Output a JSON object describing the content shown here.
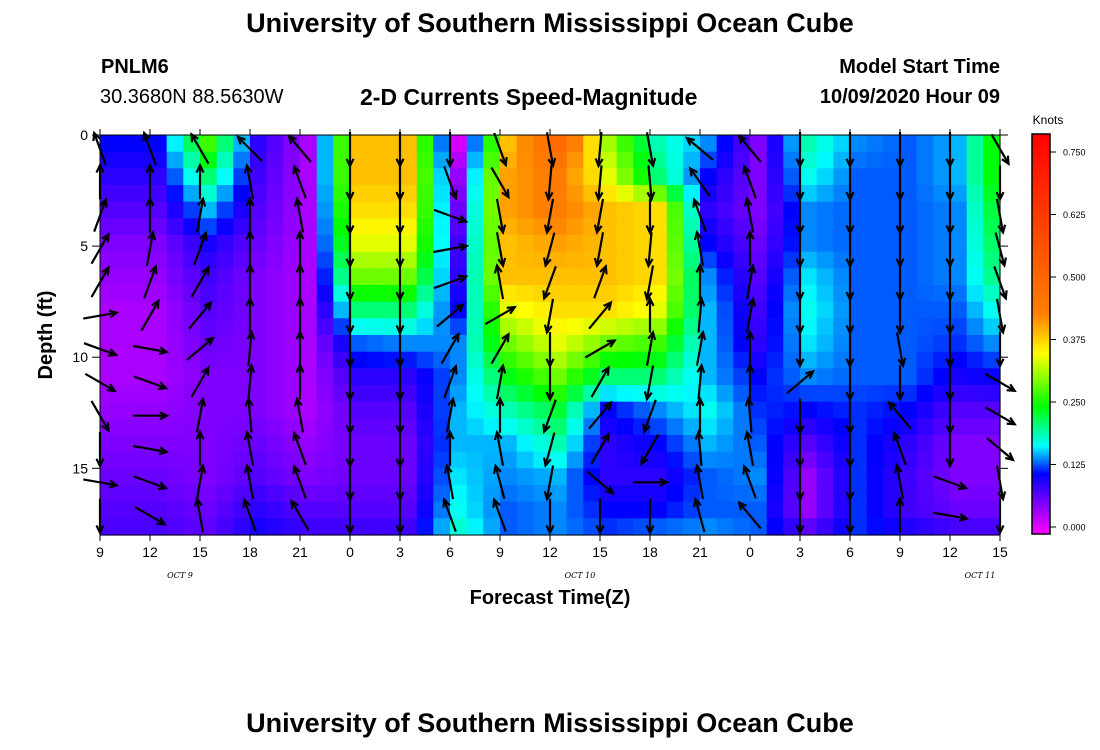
{
  "header": {
    "title": "University of Southern Mississippi Ocean Cube",
    "station_id": "PNLM6",
    "coordinates": "30.3680N 88.5630W",
    "subtitle": "2-D Currents Speed-Magnitude",
    "model_start_label": "Model Start Time",
    "model_start_value": "10/09/2020 Hour 09"
  },
  "footer": {
    "title": "University of Southern Mississippi Ocean Cube"
  },
  "chart_data": {
    "type": "heatmap",
    "xlabel": "Forecast Time(Z)",
    "ylabel": "Depth (ft)",
    "x_tick_labels": [
      "9",
      "12",
      "15",
      "18",
      "21",
      "0",
      "3",
      "6",
      "9",
      "12",
      "15",
      "18",
      "21",
      "0",
      "3",
      "6",
      "9",
      "12",
      "15"
    ],
    "date_labels": [
      "OCT 9",
      "OCT 10",
      "OCT 11"
    ],
    "y_ticks": [
      0,
      5,
      10,
      15
    ],
    "ylim": [
      0,
      18
    ],
    "y_inverted": true,
    "colorbar": {
      "unit": "Knots",
      "ticks": [
        "0.000",
        "0.125",
        "0.250",
        "0.375",
        "0.500",
        "0.625",
        "0.750"
      ],
      "range": [
        0,
        0.8
      ],
      "colors": [
        "#ff00ff",
        "#8800ff",
        "#0000ff",
        "#00ffff",
        "#00ff00",
        "#ffff00",
        "#ff8000",
        "#ff0000"
      ]
    },
    "time_hours": [
      0,
      3,
      6,
      9,
      12,
      15,
      18,
      21,
      24,
      27,
      30,
      33,
      36,
      39,
      42,
      45,
      48,
      51,
      54
    ],
    "depth_ft": [
      0,
      1.5,
      3,
      4.5,
      6,
      7.5,
      9,
      10.5,
      12,
      13.5,
      15,
      16.5,
      18
    ],
    "speed_knots": [
      [
        0.12,
        0.1,
        0.08,
        0.06,
        0.05,
        0.04,
        0.04,
        0.04,
        0.05,
        0.06,
        0.07,
        0.08,
        0.09
      ],
      [
        0.12,
        0.1,
        0.08,
        0.06,
        0.05,
        0.04,
        0.04,
        0.04,
        0.05,
        0.06,
        0.07,
        0.08,
        0.09
      ],
      [
        0.28,
        0.22,
        0.16,
        0.11,
        0.09,
        0.08,
        0.07,
        0.06,
        0.06,
        0.06,
        0.06,
        0.07,
        0.08
      ],
      [
        0.1,
        0.09,
        0.08,
        0.07,
        0.06,
        0.06,
        0.06,
        0.06,
        0.06,
        0.07,
        0.08,
        0.1,
        0.12
      ],
      [
        0.04,
        0.04,
        0.04,
        0.04,
        0.04,
        0.04,
        0.04,
        0.04,
        0.04,
        0.05,
        0.06,
        0.08,
        0.1
      ],
      [
        0.4,
        0.4,
        0.38,
        0.35,
        0.3,
        0.22,
        0.14,
        0.1,
        0.08,
        0.07,
        0.07,
        0.08,
        0.1
      ],
      [
        0.4,
        0.4,
        0.38,
        0.35,
        0.3,
        0.22,
        0.15,
        0.1,
        0.08,
        0.07,
        0.07,
        0.08,
        0.1
      ],
      [
        0.02,
        0.05,
        0.07,
        0.09,
        0.1,
        0.12,
        0.15,
        0.15,
        0.16,
        0.16,
        0.17,
        0.18,
        0.2
      ],
      [
        0.4,
        0.42,
        0.42,
        0.4,
        0.4,
        0.35,
        0.3,
        0.25,
        0.2,
        0.16,
        0.15,
        0.14,
        0.14
      ],
      [
        0.5,
        0.45,
        0.45,
        0.42,
        0.4,
        0.38,
        0.35,
        0.3,
        0.24,
        0.2,
        0.16,
        0.15,
        0.15
      ],
      [
        0.32,
        0.35,
        0.4,
        0.4,
        0.4,
        0.38,
        0.3,
        0.22,
        0.12,
        0.1,
        0.1,
        0.12,
        0.14
      ],
      [
        0.2,
        0.22,
        0.38,
        0.38,
        0.38,
        0.35,
        0.28,
        0.22,
        0.15,
        0.12,
        0.1,
        0.12,
        0.16
      ],
      [
        0.15,
        0.12,
        0.1,
        0.12,
        0.15,
        0.16,
        0.16,
        0.16,
        0.18,
        0.16,
        0.14,
        0.14,
        0.16
      ],
      [
        0.06,
        0.06,
        0.06,
        0.07,
        0.08,
        0.09,
        0.1,
        0.12,
        0.13,
        0.14,
        0.15,
        0.14,
        0.14
      ],
      [
        0.2,
        0.18,
        0.15,
        0.15,
        0.17,
        0.18,
        0.17,
        0.15,
        0.12,
        0.08,
        0.05,
        0.05,
        0.1
      ],
      [
        0.15,
        0.14,
        0.14,
        0.14,
        0.14,
        0.14,
        0.14,
        0.14,
        0.13,
        0.13,
        0.13,
        0.13,
        0.13
      ],
      [
        0.14,
        0.14,
        0.14,
        0.14,
        0.14,
        0.14,
        0.14,
        0.14,
        0.12,
        0.1,
        0.09,
        0.09,
        0.12
      ],
      [
        0.16,
        0.16,
        0.15,
        0.15,
        0.15,
        0.14,
        0.13,
        0.11,
        0.08,
        0.06,
        0.06,
        0.07,
        0.1
      ],
      [
        0.3,
        0.3,
        0.28,
        0.26,
        0.24,
        0.2,
        0.16,
        0.12,
        0.08,
        0.06,
        0.06,
        0.07,
        0.1
      ]
    ],
    "arrow_angles_deg": [
      [
        250,
        270,
        290,
        300,
        300,
        350,
        20,
        30,
        60,
        90,
        10,
        90,
        270
      ],
      [
        250,
        270,
        270,
        280,
        290,
        300,
        10,
        20,
        0,
        10,
        20,
        30,
        270
      ],
      [
        240,
        270,
        280,
        290,
        300,
        310,
        320,
        300,
        280,
        270,
        280,
        260,
        270
      ],
      [
        225,
        260,
        270,
        270,
        270,
        270,
        275,
        275,
        265,
        260,
        260,
        250,
        270
      ],
      [
        230,
        250,
        260,
        270,
        270,
        270,
        270,
        270,
        260,
        250,
        250,
        240,
        245
      ],
      [
        90,
        90,
        90,
        90,
        90,
        90,
        90,
        90,
        90,
        90,
        90,
        90,
        90
      ],
      [
        90,
        90,
        90,
        90,
        90,
        90,
        90,
        90,
        90,
        90,
        90,
        90,
        90
      ],
      [
        90,
        70,
        20,
        350,
        340,
        320,
        300,
        290,
        280,
        270,
        260,
        250,
        240
      ],
      [
        70,
        60,
        80,
        80,
        260,
        330,
        300,
        280,
        270,
        260,
        255,
        250,
        270
      ],
      [
        80,
        95,
        100,
        105,
        110,
        100,
        90,
        90,
        110,
        105,
        100,
        90,
        270
      ],
      [
        95,
        95,
        100,
        100,
        290,
        310,
        330,
        300,
        310,
        300,
        40,
        90,
        90
      ],
      [
        80,
        85,
        90,
        95,
        100,
        270,
        280,
        100,
        110,
        120,
        0,
        90,
        90
      ],
      [
        220,
        235,
        250,
        260,
        270,
        275,
        280,
        275,
        270,
        265,
        260,
        255,
        270
      ],
      [
        230,
        250,
        260,
        270,
        280,
        280,
        270,
        270,
        265,
        260,
        250,
        230,
        20
      ],
      [
        90,
        90,
        90,
        90,
        90,
        90,
        90,
        320,
        90,
        90,
        90,
        90,
        90
      ],
      [
        90,
        90,
        90,
        90,
        90,
        90,
        90,
        90,
        90,
        90,
        90,
        90,
        90
      ],
      [
        90,
        90,
        90,
        90,
        90,
        90,
        80,
        90,
        230,
        250,
        260,
        270,
        90
      ],
      [
        90,
        90,
        90,
        90,
        90,
        90,
        90,
        90,
        90,
        90,
        20,
        10,
        90
      ],
      [
        60,
        90,
        80,
        75,
        70,
        80,
        90,
        30,
        30,
        40,
        80,
        90,
        90
      ]
    ]
  }
}
